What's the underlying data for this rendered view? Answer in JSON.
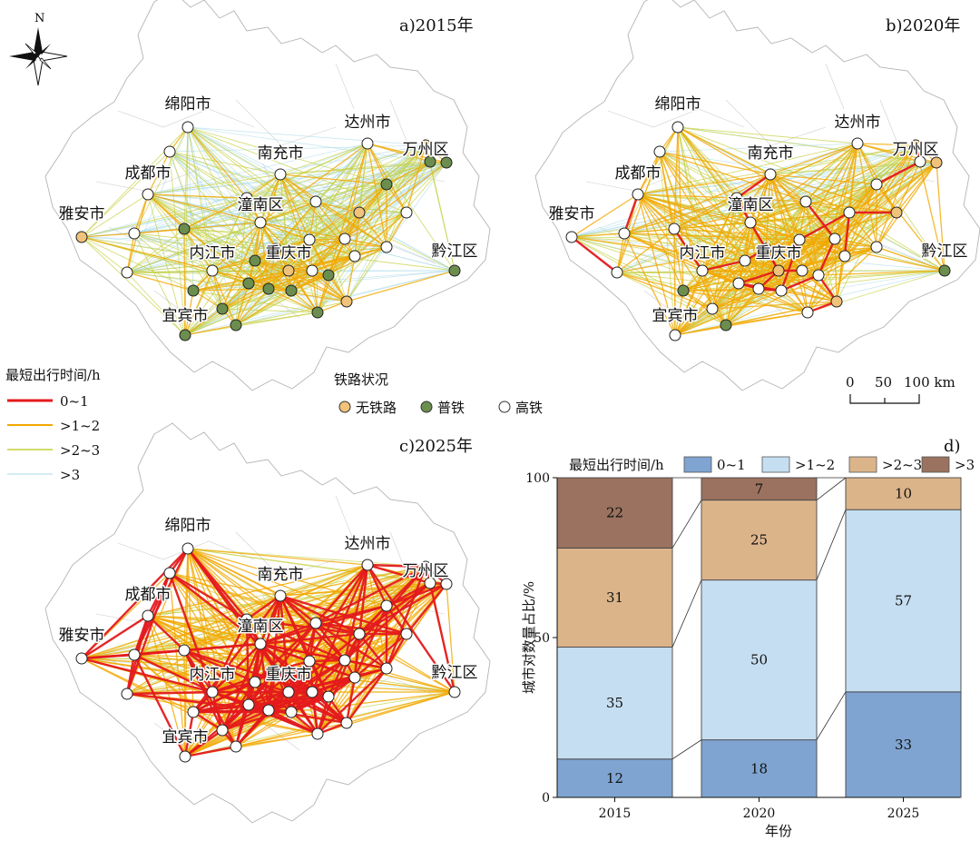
{
  "maps": {
    "north_label": "N",
    "scale": {
      "ticks": [
        "0",
        "50",
        "100 km"
      ]
    },
    "panels": [
      {
        "id": "a",
        "title": "a)2015年"
      },
      {
        "id": "b",
        "title": "b)2020年"
      },
      {
        "id": "c",
        "title": "c)2025年"
      }
    ],
    "cities": [
      "绵阳市",
      "达州市",
      "南充市",
      "万州区",
      "成都市",
      "潼南区",
      "雅安市",
      "内江市",
      "重庆市",
      "黔江区",
      "宜宾市"
    ],
    "legend_time": {
      "title": "最短出行时间/h",
      "items": [
        {
          "label": "0~1",
          "color": "#e41a1c"
        },
        {
          "label": ">1~2",
          "color": "#f3a800"
        },
        {
          "label": ">2~3",
          "color": "#c3cf3c"
        },
        {
          "label": ">3",
          "color": "#a8d8e8"
        }
      ]
    },
    "legend_rail": {
      "title": "铁路状况",
      "items": [
        {
          "label": "无铁路",
          "color": "#f0c27a"
        },
        {
          "label": "普铁",
          "color": "#6b8e4e"
        },
        {
          "label": "高铁",
          "color": "#ffffff"
        }
      ]
    }
  },
  "chart_data": {
    "type": "bar",
    "stacked": true,
    "panel_label": "d)",
    "legend_title": "最短出行时间/h",
    "categories": [
      "2015",
      "2020",
      "2025"
    ],
    "series": [
      {
        "name": "0~1",
        "values": [
          12,
          18,
          33
        ],
        "color": "#7fa4d1"
      },
      {
        "name": ">1~2",
        "values": [
          35,
          50,
          57
        ],
        "color": "#c6def1"
      },
      {
        "name": ">2~3",
        "values": [
          31,
          25,
          10
        ],
        "color": "#dcb48a"
      },
      {
        "name": ">3",
        "values": [
          22,
          7,
          0
        ],
        "color": "#9a725f"
      }
    ],
    "xlabel": "年份",
    "ylabel": "城市对数量占比/%",
    "ylim": [
      0,
      100
    ],
    "yticks": [
      "0",
      "50",
      "100"
    ]
  }
}
